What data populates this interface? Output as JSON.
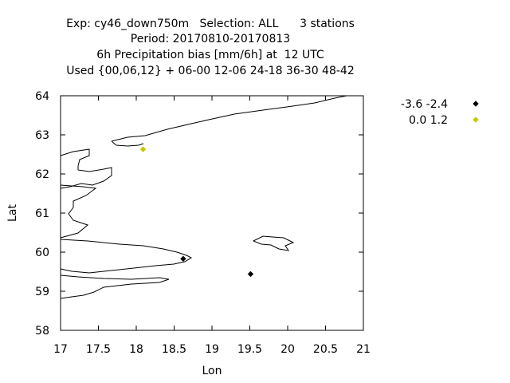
{
  "chart_data": {
    "type": "scatter",
    "title_lines": [
      "Exp: cy46_down750m   Selection: ALL      3 stations",
      "Period: 20170810-20170813",
      "6h Precipitation bias [mm/6h] at  12 UTC",
      "Used {00,06,12} + 06-00 12-06 24-18 36-30 48-42"
    ],
    "xlabel": "Lon",
    "ylabel": "Lat",
    "xlim": [
      17,
      21
    ],
    "ylim": [
      58,
      64
    ],
    "x_ticks": [
      "17",
      "17.5",
      "18",
      "18.5",
      "19",
      "19.5",
      "20",
      "20.5",
      "21"
    ],
    "y_ticks": [
      "58",
      "59",
      "60",
      "61",
      "62",
      "63",
      "64"
    ],
    "grid": false,
    "legend_position": "top-right, outside plot",
    "series": [
      {
        "name": "-3.6 -2.4",
        "color": "#000000",
        "points": [
          {
            "x": 18.62,
            "y": 59.83
          },
          {
            "x": 19.51,
            "y": 59.44
          }
        ]
      },
      {
        "name": "0.0 1.2",
        "color": "#c8c800",
        "points": [
          {
            "x": 18.09,
            "y": 62.63
          }
        ]
      }
    ],
    "coastline_color": "#000000"
  }
}
